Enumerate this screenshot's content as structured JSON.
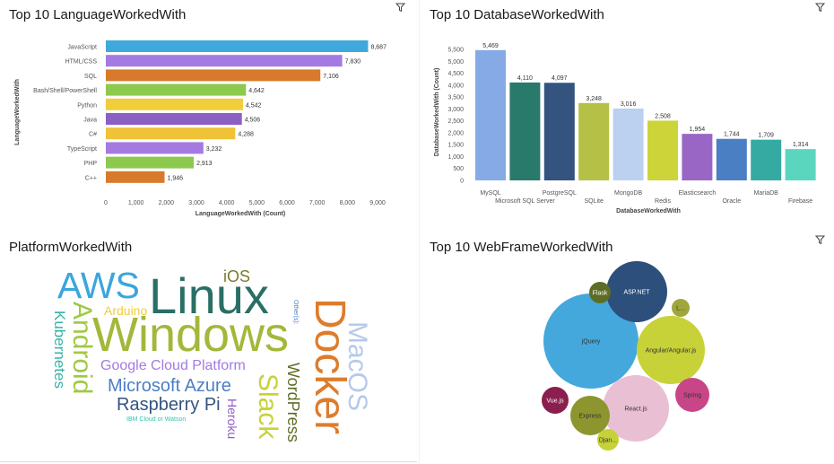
{
  "panels": {
    "lang_title": "Top 10 LanguageWorkedWith",
    "db_title": "Top 10 DatabaseWorkedWith",
    "platform_title": "PlatformWorkedWith",
    "web_title": "Top 10 WebFrameWorkedWith"
  },
  "icons": {
    "filter": "filter-icon"
  },
  "chart_data": [
    {
      "type": "bar",
      "orientation": "horizontal",
      "title": "Top 10 LanguageWorkedWith",
      "xlabel": "LanguageWorkedWith (Count)",
      "ylabel": "LanguageWorkedWith",
      "xlim": [
        0,
        9000
      ],
      "xticks": [
        "0",
        "1,000",
        "2,000",
        "3,000",
        "4,000",
        "5,000",
        "6,000",
        "7,000",
        "8,000",
        "9,000"
      ],
      "categories": [
        "JavaScript",
        "HTML/CSS",
        "SQL",
        "Bash/Shell/PowerShell",
        "Python",
        "Java",
        "C#",
        "TypeScript",
        "PHP",
        "C++"
      ],
      "values": [
        8687,
        7830,
        7106,
        4642,
        4542,
        4506,
        4288,
        3232,
        2913,
        1946
      ],
      "value_labels": [
        "8,687",
        "7,830",
        "7,106",
        "4,642",
        "4,542",
        "4,506",
        "4,288",
        "3,232",
        "2,913",
        "1,946"
      ],
      "colors": [
        "#40a9dc",
        "#a47ae2",
        "#d87a2c",
        "#8cc94e",
        "#f2cd3b",
        "#8c5fc2",
        "#f0c238",
        "#a47ae2",
        "#8cc94e",
        "#d87a2c"
      ],
      "grid": false
    },
    {
      "type": "bar",
      "title": "Top 10 DatabaseWorkedWith",
      "xlabel": "DatabaseWorkedWith",
      "ylabel": "DatabaseWorkedWith (Count)",
      "ylim": [
        0,
        5500
      ],
      "yticks": [
        "0",
        "500",
        "1,000",
        "1,500",
        "2,000",
        "2,500",
        "3,000",
        "3,500",
        "4,000",
        "4,500",
        "5,000",
        "5,500"
      ],
      "categories": [
        "MySQL",
        "Microsoft SQL Server",
        "PostgreSQL",
        "SQLite",
        "MongoDB",
        "Redis",
        "Elasticsearch",
        "Oracle",
        "MariaDB",
        "Firebase"
      ],
      "values": [
        5469,
        4110,
        4097,
        3248,
        3016,
        2508,
        1954,
        1744,
        1709,
        1314
      ],
      "value_labels": [
        "5,469",
        "4,110",
        "4,097",
        "3,248",
        "3,016",
        "2,508",
        "1,954",
        "1,744",
        "1,709",
        "1,314"
      ],
      "colors": [
        "#86aae6",
        "#2a7a6c",
        "#34547f",
        "#b4c146",
        "#bcd0ef",
        "#ccd43a",
        "#9966c5",
        "#4a7fc4",
        "#35aaa2",
        "#5ad6be"
      ],
      "grid": false
    }
  ],
  "word_cloud": {
    "words": [
      {
        "text": "AWS",
        "color": "#3aa6dc"
      },
      {
        "text": "Linux",
        "color": "#2a6f66"
      },
      {
        "text": "iOS",
        "color": "#7a7a2e"
      },
      {
        "text": "Android",
        "color": "#a0c943"
      },
      {
        "text": "Arduino",
        "color": "#f2cd3b"
      },
      {
        "text": "Kubernetes",
        "color": "#36b3a6"
      },
      {
        "text": "Windows",
        "color": "#a4b73a"
      },
      {
        "text": "Docker",
        "color": "#de7c2c"
      },
      {
        "text": "MacOS",
        "color": "#b6c9ea"
      },
      {
        "text": "Other(s):",
        "color": "#4a7fc4"
      },
      {
        "text": "Google Cloud Platform",
        "color": "#a47ae2"
      },
      {
        "text": "Microsoft Azure",
        "color": "#4a7fc4"
      },
      {
        "text": "Raspberry Pi",
        "color": "#34547f"
      },
      {
        "text": "IBM Cloud or Watson",
        "color": "#36c3b0"
      },
      {
        "text": "Heroku",
        "color": "#8c5fc2"
      },
      {
        "text": "Slack",
        "color": "#c7d238"
      },
      {
        "text": "WordPress",
        "color": "#5e6d25"
      }
    ]
  },
  "bubbles": [
    {
      "label": "jQuery",
      "color": "#44a8dc"
    },
    {
      "label": "ASP.NET",
      "color": "#2d4f7c"
    },
    {
      "label": "Angular/Angular.js",
      "color": "#c7d238"
    },
    {
      "label": "React.js",
      "color": "#e9bfd4"
    },
    {
      "label": "Express",
      "color": "#8d962e"
    },
    {
      "label": "Spring",
      "color": "#c84688"
    },
    {
      "label": "Vue.js",
      "color": "#8a1f4e"
    },
    {
      "label": "Flask",
      "color": "#5e6d25"
    },
    {
      "label": "L...",
      "color": "#a0a63a"
    },
    {
      "label": "Djan...",
      "color": "#c7d238"
    }
  ]
}
